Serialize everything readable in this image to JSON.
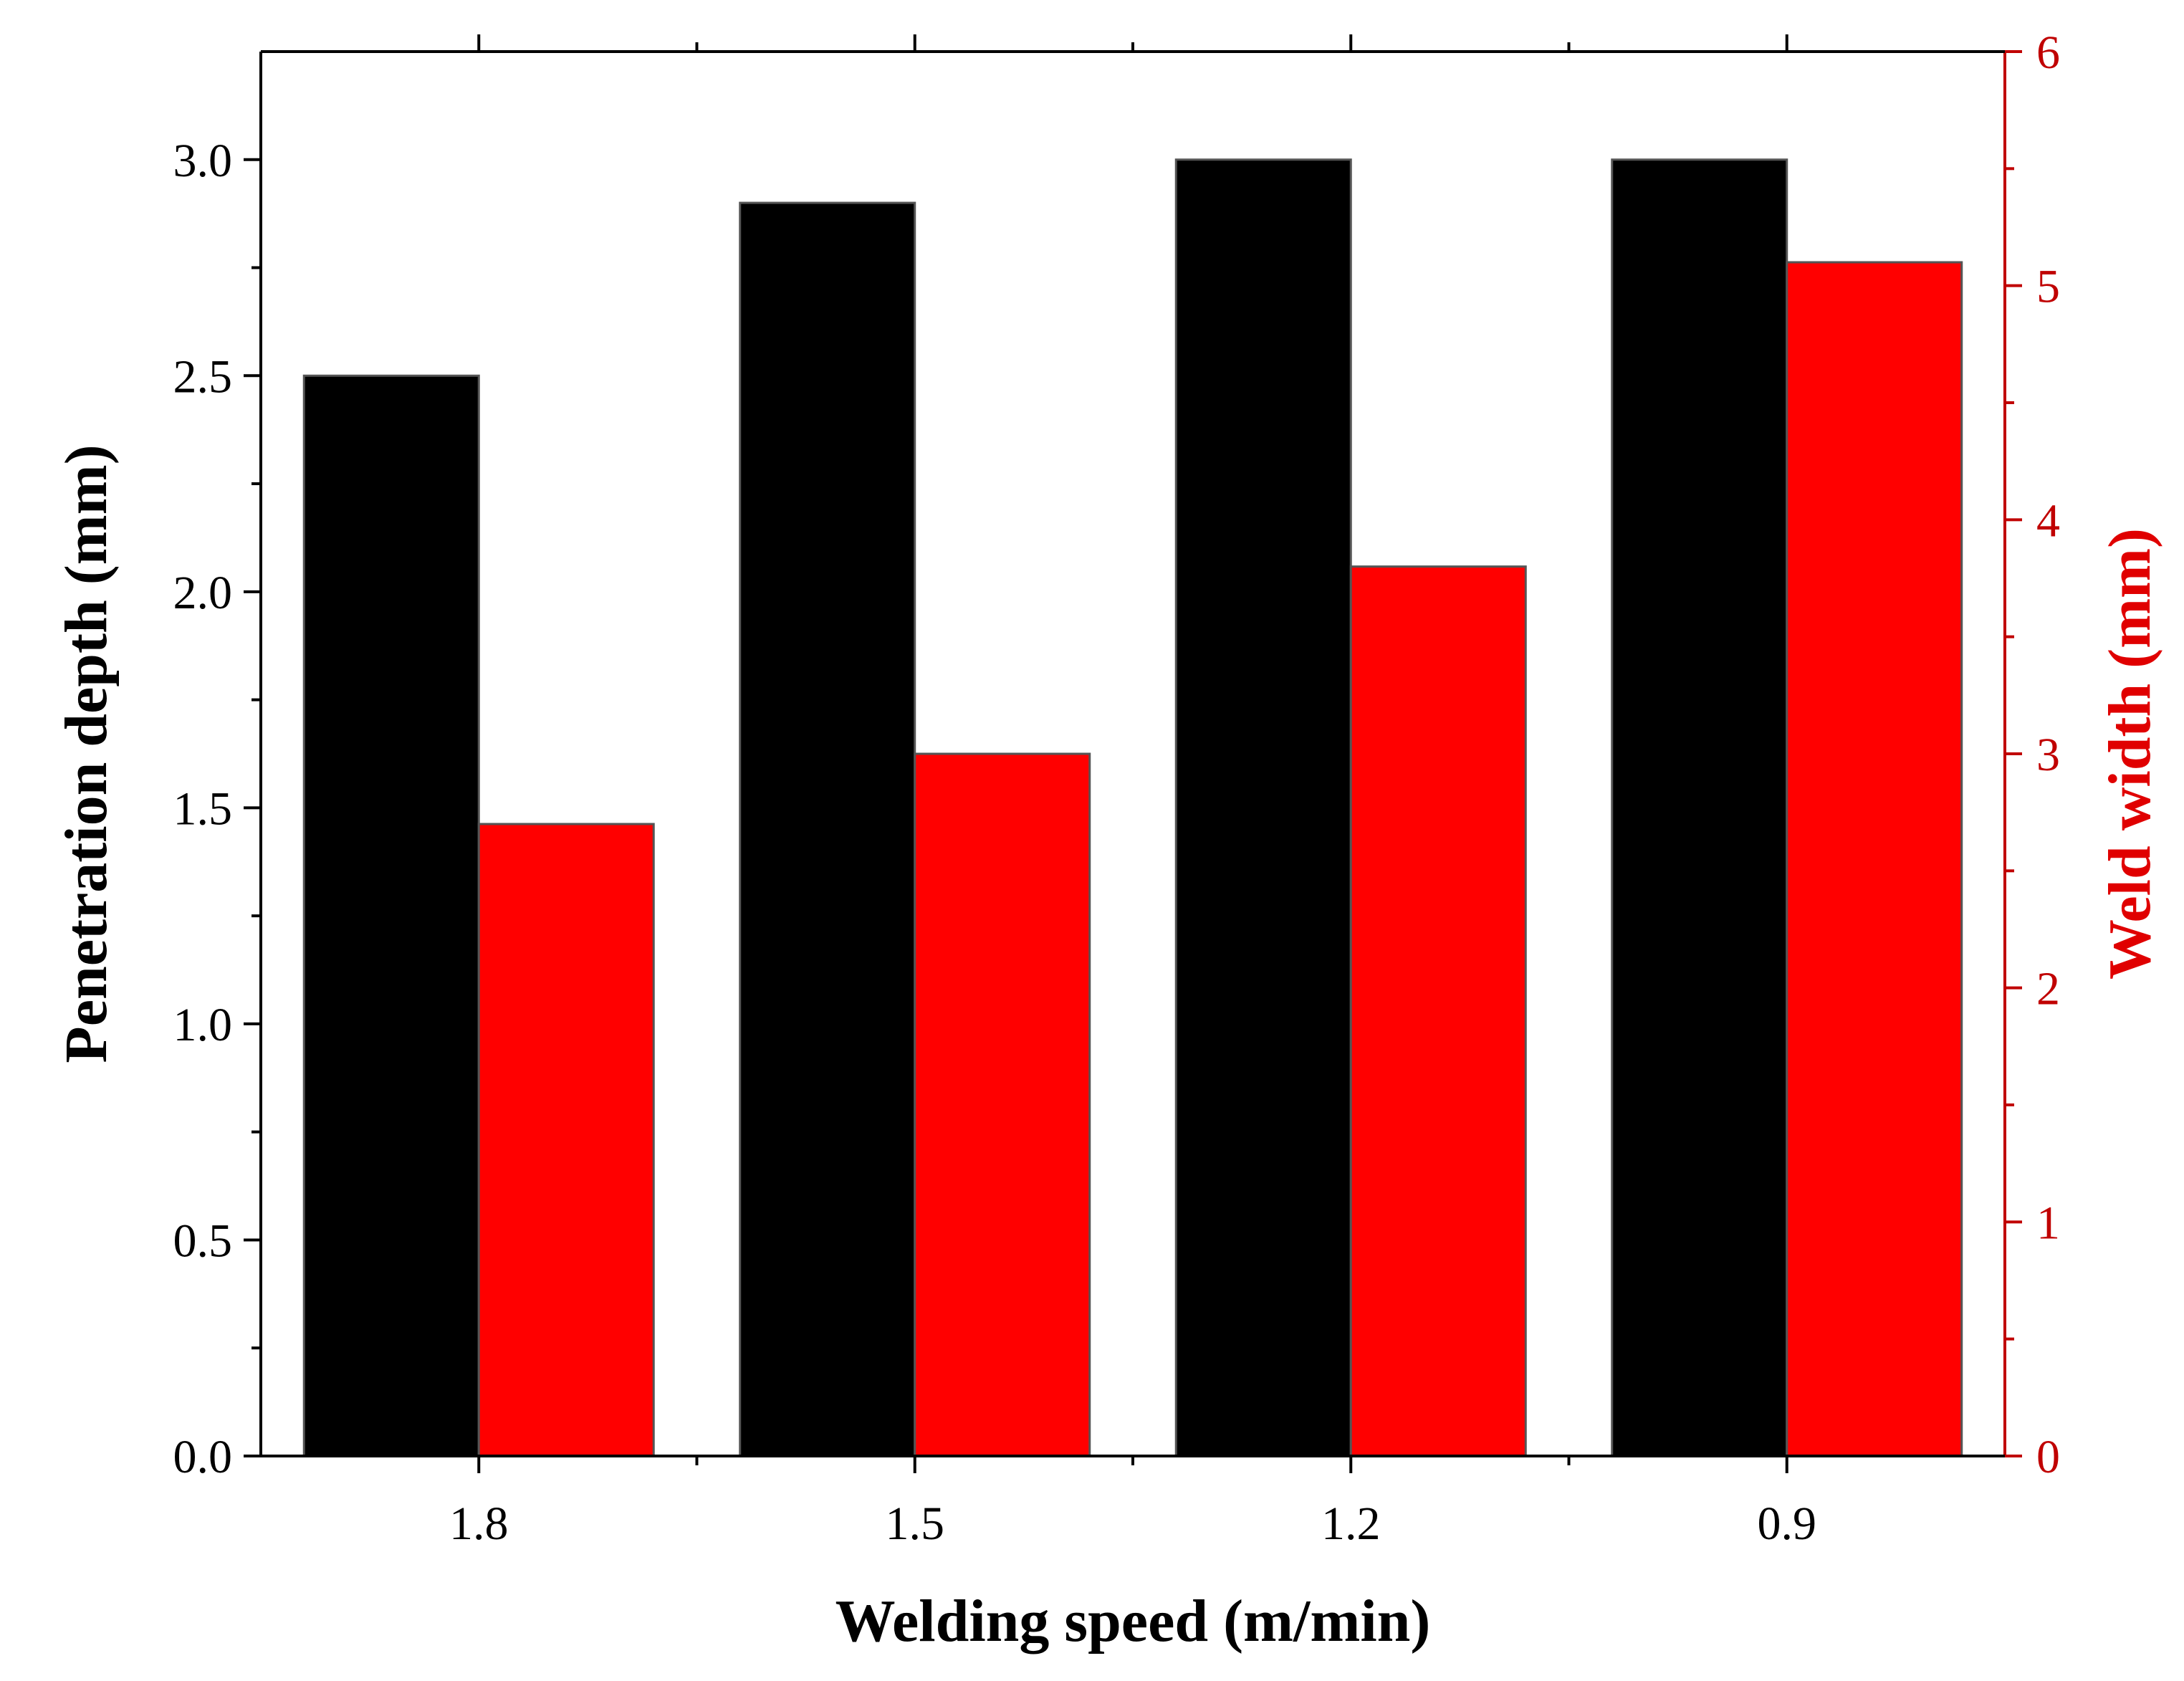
{
  "chart_data": {
    "type": "bar",
    "xlabel": "Welding speed (m/min)",
    "categories": [
      "1.8",
      "1.5",
      "1.2",
      "0.9"
    ],
    "y_left": {
      "label": "Penetration depth (mm)",
      "ylim": [
        0,
        3.25
      ],
      "ticks": [
        "0.0",
        "0.5",
        "1.0",
        "1.5",
        "2.0",
        "2.5",
        "3.0"
      ],
      "tick_values": [
        0,
        0.5,
        1.0,
        1.5,
        2.0,
        2.5,
        3.0
      ]
    },
    "y_right": {
      "label": "Weld width (mm)",
      "ylim": [
        0,
        6
      ],
      "ticks": [
        "0",
        "1",
        "2",
        "3",
        "4",
        "5",
        "6"
      ],
      "tick_values": [
        0,
        1,
        2,
        3,
        4,
        5,
        6
      ]
    },
    "series": [
      {
        "name": "Penetration depth",
        "axis": "left",
        "color": "#000000",
        "values": [
          2.5,
          2.9,
          3.0,
          3.0
        ]
      },
      {
        "name": "Weld width",
        "axis": "right",
        "color": "#ff0000",
        "values": [
          2.7,
          3.0,
          3.8,
          5.1
        ]
      }
    ],
    "colors": {
      "left_axis": "#000000",
      "right_axis": "#c00000",
      "right_title": "#e00000"
    }
  }
}
